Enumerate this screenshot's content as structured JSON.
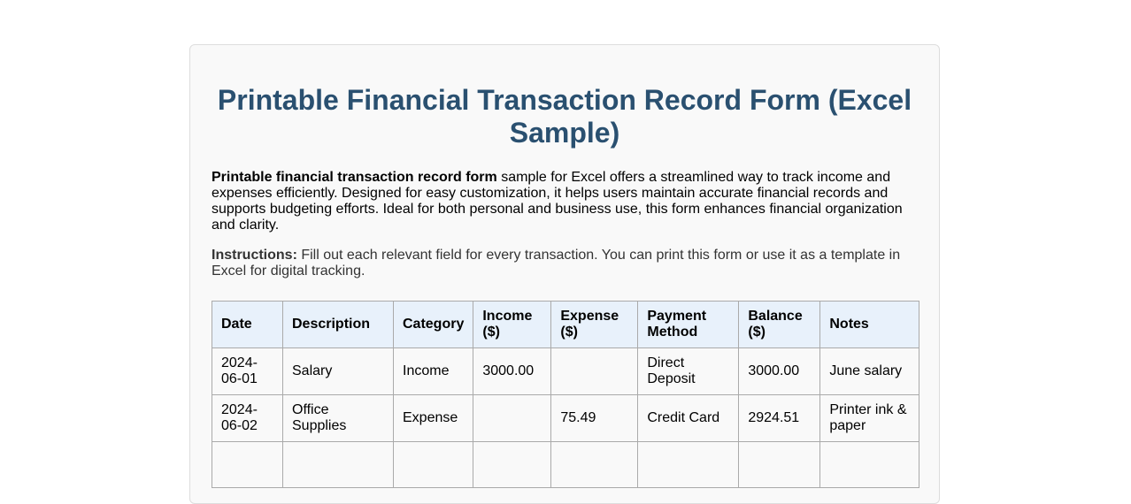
{
  "title": "Printable Financial Transaction Record Form (Excel Sample)",
  "description": {
    "bold": "Printable financial transaction record form",
    "rest": " sample for Excel offers a streamlined way to track income and expenses efficiently. Designed for easy customization, it helps users maintain accurate financial records and supports budgeting efforts. Ideal for both personal and business use, this form enhances financial organization and clarity."
  },
  "instructions": {
    "label": "Instructions:",
    "text": " Fill out each relevant field for every transaction. You can print this form or use it as a template in Excel for digital tracking."
  },
  "table": {
    "headers": [
      "Date",
      "Description",
      "Category",
      "Income ($)",
      "Expense ($)",
      "Payment Method",
      "Balance ($)",
      "Notes"
    ],
    "rows": [
      [
        "2024-06-01",
        "Salary",
        "Income",
        "3000.00",
        "",
        "Direct Deposit",
        "3000.00",
        "June salary"
      ],
      [
        "2024-06-02",
        "Office Supplies",
        "Expense",
        "",
        "75.49",
        "Credit Card",
        "2924.51",
        "Printer ink & paper"
      ]
    ]
  }
}
